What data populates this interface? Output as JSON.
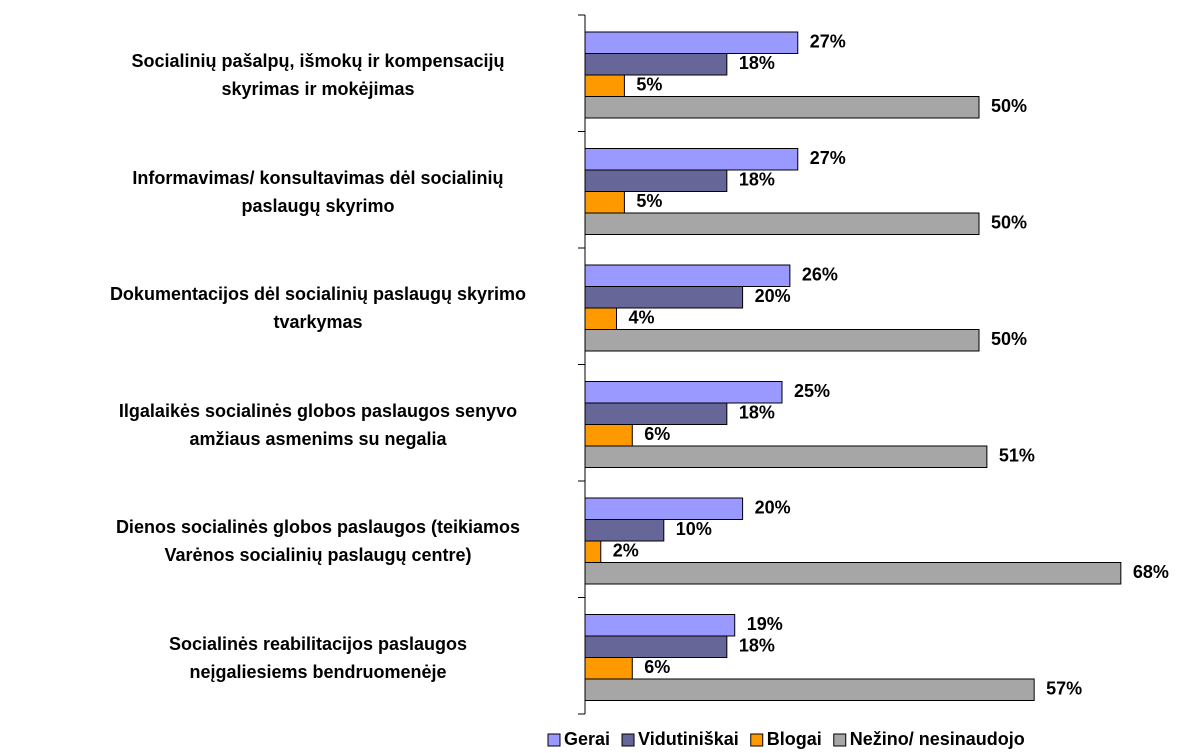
{
  "chart_data": {
    "type": "bar",
    "orientation": "horizontal",
    "categories": [
      "Socialinių pašalpų, išmokų ir kompensacijų\nskyrimas ir mokėjimas",
      "Informavimas/ konsultavimas dėl socialinių\npaslaugų skyrimo",
      "Dokumentacijos dėl socialinių paslaugų skyrimo\ntvarkymas",
      "Ilgalaikės socialinės globos paslaugos senyvo\namžiaus asmenims su negalia",
      "Dienos socialinės globos paslaugos (teikiamos\nVarėnos socialinių paslaugų centre)",
      "Socialinės reabilitacijos paslaugos\nneįgaliesiems bendruomenėje"
    ],
    "series": [
      {
        "name": "Gerai",
        "color": "#9999ff",
        "values": [
          27,
          27,
          26,
          25,
          20,
          19
        ],
        "value_labels": [
          "27%",
          "27%",
          "26%",
          "25%",
          "20%",
          "19%"
        ]
      },
      {
        "name": "Vidutiniškai",
        "color": "#666699",
        "values": [
          18,
          18,
          20,
          18,
          10,
          18
        ],
        "value_labels": [
          "18%",
          "18%",
          "20%",
          "18%",
          "10%",
          "18%"
        ]
      },
      {
        "name": "Blogai",
        "color": "#ff9900",
        "values": [
          5,
          5,
          4,
          6,
          2,
          6
        ],
        "value_labels": [
          "5%",
          "5%",
          "4%",
          "6%",
          "2%",
          "6%"
        ]
      },
      {
        "name": "Nežino/ nesinaudojo",
        "color": "#a6a6a6",
        "values": [
          50,
          50,
          50,
          51,
          68,
          57
        ],
        "value_labels": [
          "50%",
          "50%",
          "50%",
          "51%",
          "68%",
          "57%"
        ]
      }
    ],
    "legend": "bottom"
  }
}
